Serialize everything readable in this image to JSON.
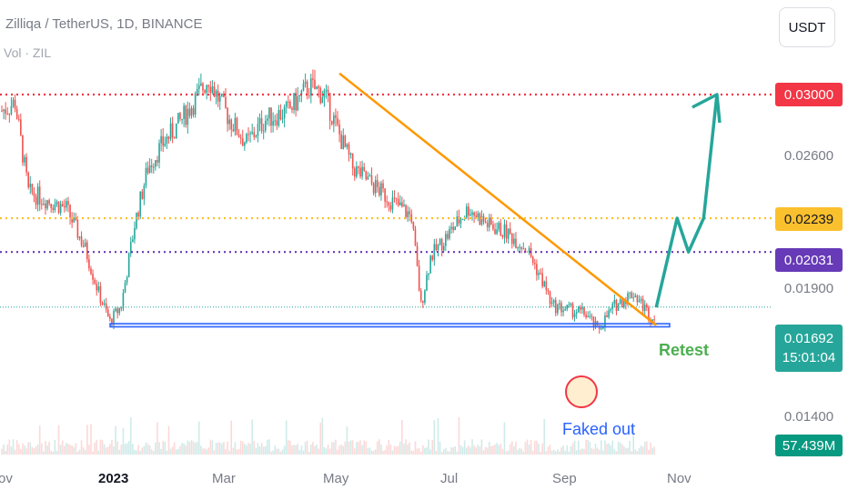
{
  "header": {
    "title": "Zilliqa / TetherUS, 1D, BINANCE",
    "volume_label": "Vol · ZIL"
  },
  "currency_button": "USDT",
  "price_labels": {
    "level_high": "0.03000",
    "level_mid": "0.02239",
    "level_low": "0.02031",
    "current_price": "0.01692",
    "countdown": "15:01:04",
    "volume": "57.439M"
  },
  "y_ticks": [
    "0.02600",
    "0.01900",
    "0.01400"
  ],
  "x_ticks": [
    "ov",
    "2023",
    "Mar",
    "May",
    "Jul",
    "Sep",
    "Nov"
  ],
  "annotations": {
    "retest": "Retest",
    "faked_out": "Faked out"
  },
  "colors": {
    "up": "#26a69a",
    "down": "#ef5350",
    "level_high": "#f23645",
    "level_mid": "#fbc02d",
    "level_low": "#673ab7",
    "trendline": "#ff9800",
    "arrow": "#26a69a",
    "support_box": "#2962ff"
  },
  "chart_data": {
    "type": "line",
    "symbol": "ZILUSDT",
    "exchange": "BINANCE",
    "interval": "1D",
    "price_path": {
      "x": [
        "2022-11-01",
        "2022-11-08",
        "2022-11-15",
        "2022-11-25",
        "2022-12-05",
        "2022-12-15",
        "2022-12-22",
        "2022-12-28",
        "2023-01-03",
        "2023-01-10",
        "2023-01-17",
        "2023-01-25",
        "2023-02-01",
        "2023-02-10",
        "2023-02-18",
        "2023-02-22",
        "2023-03-01",
        "2023-03-10",
        "2023-03-20",
        "2023-04-01",
        "2023-04-12",
        "2023-04-20",
        "2023-04-28",
        "2023-05-05",
        "2023-05-15",
        "2023-05-25",
        "2023-06-05",
        "2023-06-10",
        "2023-06-15",
        "2023-06-25",
        "2023-07-05",
        "2023-07-15",
        "2023-07-25",
        "2023-08-05",
        "2023-08-15",
        "2023-08-18",
        "2023-08-25",
        "2023-09-05",
        "2023-09-11",
        "2023-09-20",
        "2023-09-30",
        "2023-10-05",
        "2023-10-10",
        "2023-10-12"
      ],
      "y": [
        0.029,
        0.0295,
        0.024,
        0.0235,
        0.023,
        0.0205,
        0.0178,
        0.016,
        0.017,
        0.022,
        0.0255,
        0.027,
        0.028,
        0.0295,
        0.031,
        0.03,
        0.0285,
        0.027,
        0.0285,
        0.029,
        0.0305,
        0.03,
        0.0275,
        0.0255,
        0.0245,
        0.0235,
        0.0225,
        0.017,
        0.02,
        0.0215,
        0.023,
        0.022,
        0.0215,
        0.0205,
        0.018,
        0.017,
        0.0168,
        0.0165,
        0.0155,
        0.017,
        0.0178,
        0.017,
        0.0162,
        0.0169
      ]
    },
    "y_axis_ticks": [
      0.03,
      0.026,
      0.019,
      0.014
    ],
    "horizontal_levels": [
      0.03,
      0.02239,
      0.02031
    ],
    "current_price": 0.01692,
    "support_zone": [
      0.0157,
      0.0159
    ],
    "trendline": {
      "from": [
        "2023-04-28",
        0.0313
      ],
      "to": [
        "2023-10-12",
        0.0158
      ]
    },
    "projection": {
      "x": [
        "2023-10-12",
        "2023-10-23",
        "2023-10-29",
        "2023-11-06",
        "2023-11-13"
      ],
      "y": [
        0.0169,
        0.02239,
        0.02031,
        0.02239,
        0.03
      ]
    },
    "grid": false,
    "legend": "top-left"
  }
}
